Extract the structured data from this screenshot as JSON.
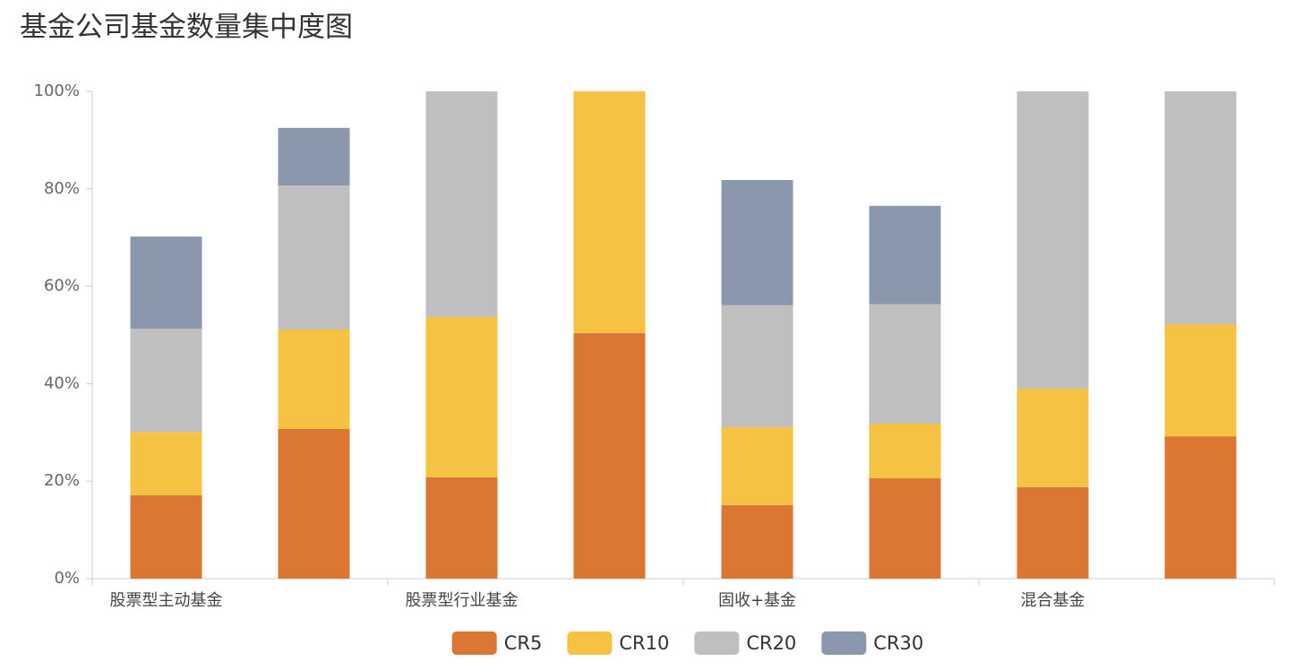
{
  "chart_data": {
    "type": "stacked_bar",
    "title": "基金公司基金数量集中度图",
    "categories": [
      "股票型主动基金",
      null,
      "股票型行业基金",
      null,
      "固收+基金",
      null,
      "混合基金",
      null
    ],
    "series": [
      {
        "name": "CR5",
        "color": "#dc7633",
        "values": [
          17.1,
          30.7,
          20.8,
          50.4,
          15.1,
          20.6,
          18.8,
          29.2
        ]
      },
      {
        "name": "CR10",
        "color": "#f5c242",
        "values": [
          13.0,
          20.4,
          32.9,
          49.6,
          16.0,
          11.2,
          20.2,
          23.0
        ]
      },
      {
        "name": "CR20",
        "color": "#bfbfbf",
        "values": [
          21.2,
          29.6,
          46.3,
          0,
          25.0,
          24.5,
          61.0,
          47.8
        ]
      },
      {
        "name": "CR30",
        "color": "#8a97ad",
        "values": [
          18.9,
          11.8,
          0,
          0,
          25.7,
          20.2,
          0,
          0
        ]
      }
    ],
    "ylim": [
      0,
      100
    ],
    "yticks": [
      {
        "value": 0,
        "label": "0%"
      },
      {
        "value": 20,
        "label": "20%"
      },
      {
        "value": 40,
        "label": "40%"
      },
      {
        "value": 60,
        "label": "60%"
      },
      {
        "value": 80,
        "label": "80%"
      },
      {
        "value": 100,
        "label": "100%"
      }
    ],
    "legend": "bottom"
  }
}
